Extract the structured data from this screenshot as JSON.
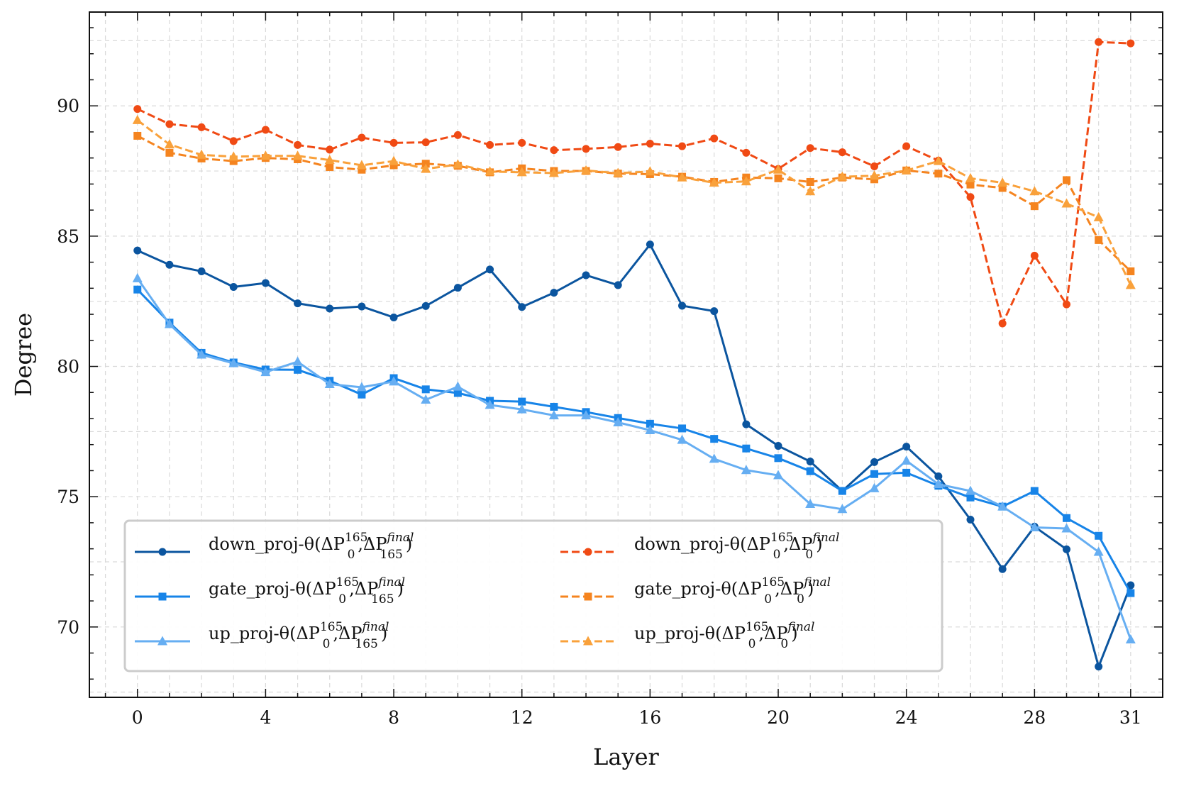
{
  "chart_data": {
    "type": "line",
    "title": "",
    "xlabel": "Layer",
    "ylabel": "Degree",
    "xlim": [
      -1.5,
      32.0
    ],
    "ylim": [
      67.3,
      93.6
    ],
    "xticks": [
      0,
      4,
      8,
      12,
      16,
      20,
      24,
      28,
      31
    ],
    "yticks": [
      70,
      75,
      80,
      85,
      90
    ],
    "grid": true,
    "legend_position": "lower-left",
    "x": [
      0,
      1,
      2,
      3,
      4,
      5,
      6,
      7,
      8,
      9,
      10,
      11,
      12,
      13,
      14,
      15,
      16,
      17,
      18,
      19,
      20,
      21,
      22,
      23,
      24,
      25,
      26,
      27,
      28,
      29,
      30,
      31
    ],
    "series": [
      {
        "name": "down_proj",
        "label_prefix": "down_proj-θ(ΔP",
        "label_sub1": "0",
        "label_sup1": "165",
        "label_mid": ",ΔP",
        "label_sub2": "165",
        "label_sup2": "final",
        "label_suffix": ")",
        "color": "#0b559f",
        "linestyle": "solid",
        "marker": "circle",
        "values": [
          84.45,
          83.9,
          83.65,
          83.05,
          83.2,
          82.42,
          82.22,
          82.3,
          81.88,
          82.32,
          83.02,
          83.72,
          82.28,
          82.83,
          83.5,
          83.12,
          84.68,
          82.33,
          82.12,
          77.78,
          76.95,
          76.35,
          75.22,
          76.33,
          76.92,
          75.78,
          74.12,
          72.22,
          73.85,
          72.98,
          68.48,
          71.6
        ]
      },
      {
        "name": "gate_proj",
        "label_prefix": "gate_proj-θ(ΔP",
        "label_sub1": "0",
        "label_sup1": "165",
        "label_mid": ",ΔP",
        "label_sub2": "165",
        "label_sup2": "final",
        "label_suffix": ")",
        "color": "#1784e8",
        "linestyle": "solid",
        "marker": "square",
        "values": [
          82.95,
          81.68,
          80.52,
          80.15,
          79.88,
          79.87,
          79.45,
          78.92,
          79.55,
          79.12,
          78.98,
          78.68,
          78.65,
          78.45,
          78.25,
          78.02,
          77.8,
          77.62,
          77.22,
          76.85,
          76.48,
          75.98,
          75.22,
          75.87,
          75.92,
          75.42,
          74.97,
          74.62,
          75.22,
          74.18,
          73.5,
          71.3
        ]
      },
      {
        "name": "up_proj",
        "label_prefix": "up_proj-θ(ΔP",
        "label_sub1": "0",
        "label_sup1": "165",
        "label_mid": ",ΔP",
        "label_sub2": "165",
        "label_sup2": "final",
        "label_suffix": ")",
        "color": "#66aef2",
        "linestyle": "solid",
        "marker": "triangle",
        "values": [
          83.38,
          81.62,
          80.45,
          80.12,
          79.78,
          80.18,
          79.32,
          79.2,
          79.42,
          78.72,
          79.22,
          78.52,
          78.35,
          78.12,
          78.12,
          77.85,
          77.55,
          77.18,
          76.45,
          76.02,
          75.82,
          74.72,
          74.52,
          75.32,
          76.38,
          75.48,
          75.22,
          74.62,
          73.82,
          73.78,
          72.88,
          69.52
        ]
      },
      {
        "name": "down_proj_final0",
        "label_prefix": "down_proj-θ(ΔP",
        "label_sub1": "0",
        "label_sup1": "165",
        "label_mid": ",ΔP",
        "label_sub2": "0",
        "label_sup2": "final",
        "label_suffix": ")",
        "color": "#f04a14",
        "linestyle": "dashed",
        "marker": "circle",
        "values": [
          89.88,
          89.3,
          89.18,
          88.65,
          89.08,
          88.5,
          88.32,
          88.78,
          88.58,
          88.6,
          88.88,
          88.5,
          88.58,
          88.3,
          88.35,
          88.42,
          88.55,
          88.45,
          88.75,
          88.2,
          87.58,
          88.38,
          88.22,
          87.68,
          88.45,
          87.9,
          86.5,
          81.65,
          84.25,
          82.38,
          92.45,
          92.4
        ]
      },
      {
        "name": "gate_proj_final0",
        "label_prefix": "gate_proj-θ(ΔP",
        "label_sub1": "0",
        "label_sup1": "165",
        "label_mid": ",ΔP",
        "label_sub2": "0",
        "label_sup2": "final",
        "label_suffix": ")",
        "color": "#f5841f",
        "linestyle": "dashed",
        "marker": "square",
        "values": [
          88.85,
          88.2,
          87.98,
          87.88,
          88.0,
          87.95,
          87.65,
          87.55,
          87.72,
          87.78,
          87.7,
          87.45,
          87.6,
          87.5,
          87.5,
          87.4,
          87.38,
          87.28,
          87.08,
          87.25,
          87.22,
          87.08,
          87.25,
          87.18,
          87.52,
          87.4,
          86.98,
          86.85,
          86.15,
          87.15,
          84.85,
          83.65
        ]
      },
      {
        "name": "up_proj_final0",
        "label_prefix": "up_proj-θ(ΔP",
        "label_sub1": "0",
        "label_sup1": "165",
        "label_mid": ",ΔP",
        "label_sub2": "0",
        "label_sup2": "final",
        "label_suffix": ")",
        "color": "#f9a13b",
        "linestyle": "dashed",
        "marker": "triangle",
        "values": [
          89.45,
          88.52,
          88.12,
          88.05,
          88.08,
          88.08,
          87.92,
          87.72,
          87.88,
          87.58,
          87.75,
          87.48,
          87.45,
          87.42,
          87.52,
          87.42,
          87.48,
          87.25,
          87.05,
          87.1,
          87.55,
          86.72,
          87.28,
          87.32,
          87.52,
          87.88,
          87.22,
          87.05,
          86.72,
          86.25,
          85.72,
          83.12
        ]
      }
    ]
  }
}
